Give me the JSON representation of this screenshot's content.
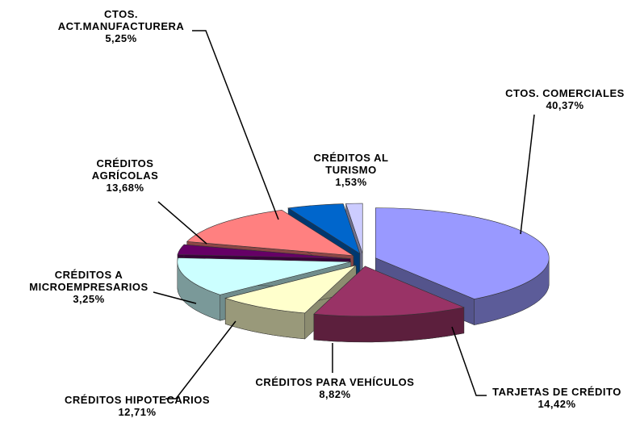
{
  "chart_data": {
    "type": "pie",
    "categories": [
      "CTOS. COMERCIALES",
      "TARJETAS DE CRÉDITO",
      "CRÉDITOS PARA VEHÍCULOS",
      "CRÉDITOS HIPOTECARIOS",
      "CRÉDITOS A MICROEMPRESARIOS",
      "CRÉDITOS AGRÍCOLAS",
      "CTOS. ACT.MANUFACTURERA",
      "CRÉDITOS AL TURISMO"
    ],
    "values": [
      40.37,
      14.42,
      8.82,
      12.71,
      3.25,
      13.68,
      5.25,
      1.53
    ],
    "value_labels": [
      "40,37%",
      "14,42%",
      "8,82%",
      "12,71%",
      "3,25%",
      "13,68%",
      "5,25%",
      "1,53%"
    ],
    "colors": [
      "#9999ff",
      "#993366",
      "#ffffcc",
      "#ccffff",
      "#660066",
      "#ff8080",
      "#0066cc",
      "#ccccff"
    ]
  }
}
